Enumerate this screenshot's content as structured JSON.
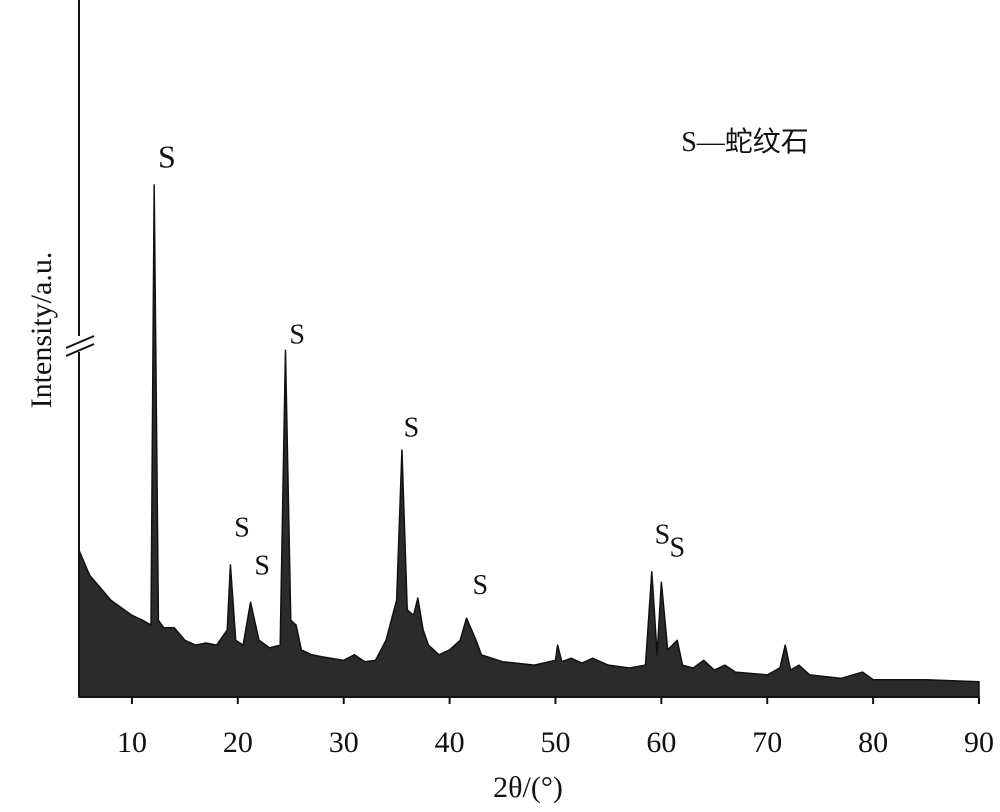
{
  "chart_data": {
    "type": "area",
    "xlabel": "2θ/(°)",
    "ylabel": "Intensity/a.u.",
    "color": "#2b2b2b",
    "xlim": [
      5,
      90
    ],
    "ylim": [
      0,
      100
    ],
    "xticks": [
      10,
      20,
      30,
      40,
      50,
      60,
      70,
      80,
      90
    ],
    "x": [
      5,
      6,
      7,
      8,
      9,
      10,
      11,
      11.8,
      12.1,
      12.5,
      13,
      14,
      15,
      16,
      17,
      18,
      19,
      19.3,
      19.8,
      20.5,
      21.2,
      22,
      23,
      24,
      24.5,
      25,
      25.5,
      26,
      27,
      28,
      30,
      31,
      32,
      33,
      34,
      35,
      35.5,
      36,
      36.6,
      37,
      37.5,
      38,
      39,
      40,
      41,
      41.6,
      42.5,
      43,
      45,
      48,
      50,
      50.2,
      50.6,
      51.5,
      52.5,
      53.5,
      55,
      57,
      58.5,
      59.1,
      59.6,
      60,
      60.6,
      61.5,
      62,
      63,
      64,
      65,
      66,
      67,
      70,
      71.2,
      71.7,
      72.2,
      73,
      74,
      77,
      79,
      80,
      85,
      90
    ],
    "y": [
      21.2,
      17.6,
      15.8,
      14.0,
      12.9,
      11.8,
      11.1,
      10.4,
      74.0,
      11.1,
      10.0,
      10.0,
      8.2,
      7.5,
      7.8,
      7.5,
      9.7,
      19.1,
      8.2,
      7.5,
      13.7,
      8.2,
      7.1,
      7.5,
      50.1,
      11.1,
      10.4,
      6.8,
      6.1,
      5.8,
      5.3,
      6.1,
      5.1,
      5.3,
      8.2,
      14.0,
      35.7,
      12.6,
      11.8,
      14.3,
      9.7,
      7.5,
      6.1,
      6.8,
      8.2,
      11.4,
      8.2,
      6.1,
      5.1,
      4.6,
      5.3,
      7.5,
      5.1,
      5.6,
      4.9,
      5.6,
      4.6,
      4.2,
      4.6,
      18.1,
      6.1,
      16.6,
      6.8,
      8.2,
      4.6,
      4.2,
      5.3,
      3.9,
      4.6,
      3.6,
      3.2,
      4.2,
      7.5,
      3.9,
      4.6,
      3.2,
      2.7,
      3.6,
      2.5,
      2.5,
      2.2
    ],
    "annotations": [
      {
        "text": "S",
        "x": 13.3,
        "y": 77.6
      },
      {
        "text": "S",
        "x": 20.4,
        "y": 24.1
      },
      {
        "text": "S",
        "x": 22.3,
        "y": 18.6
      },
      {
        "text": "S",
        "x": 25.6,
        "y": 52.0
      },
      {
        "text": "S",
        "x": 36.4,
        "y": 38.6
      },
      {
        "text": "S",
        "x": 42.9,
        "y": 15.8
      },
      {
        "text": "S",
        "x": 60.1,
        "y": 23.1
      },
      {
        "text": "S",
        "x": 61.5,
        "y": 21.2
      },
      {
        "text": "S—蛇纹石",
        "x": 67.9,
        "y": 79.8
      }
    ]
  }
}
